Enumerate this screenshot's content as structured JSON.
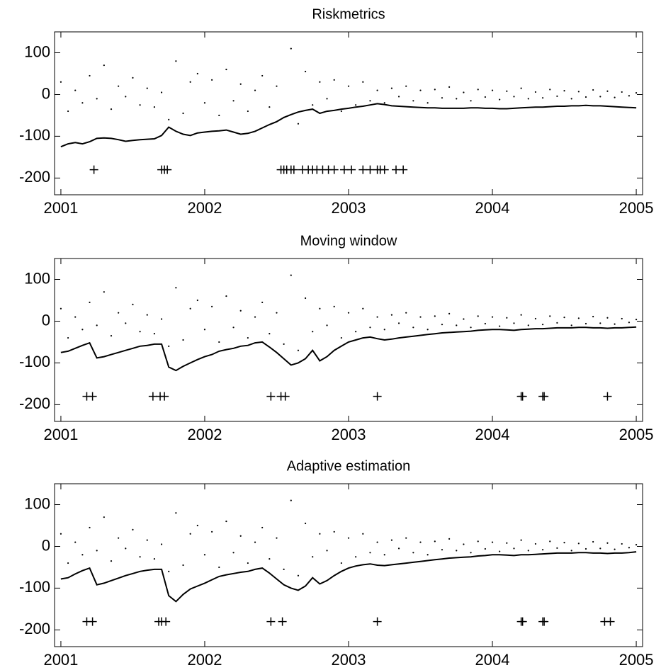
{
  "chart_data": [
    {
      "type": "line",
      "title": "Riskmetrics",
      "xlim": [
        2000.956,
        2005.044
      ],
      "ylim": [
        -240,
        150
      ],
      "xticks": [
        2001,
        2002,
        2003,
        2004,
        2005
      ],
      "yticks": [
        -200,
        -100,
        0,
        100
      ],
      "x": [
        2001.0,
        2001.05,
        2001.1,
        2001.15,
        2001.2,
        2001.25,
        2001.3,
        2001.35,
        2001.4,
        2001.45,
        2001.5,
        2001.55,
        2001.6,
        2001.65,
        2001.7,
        2001.75,
        2001.8,
        2001.85,
        2001.9,
        2001.95,
        2002.0,
        2002.05,
        2002.1,
        2002.15,
        2002.2,
        2002.25,
        2002.3,
        2002.35,
        2002.4,
        2002.45,
        2002.5,
        2002.55,
        2002.6,
        2002.65,
        2002.7,
        2002.75,
        2002.8,
        2002.85,
        2002.9,
        2002.95,
        2003.0,
        2003.05,
        2003.1,
        2003.15,
        2003.2,
        2003.25,
        2003.3,
        2003.35,
        2003.4,
        2003.45,
        2003.5,
        2003.55,
        2003.6,
        2003.65,
        2003.7,
        2003.75,
        2003.8,
        2003.85,
        2003.9,
        2003.95,
        2004.0,
        2004.05,
        2004.1,
        2004.15,
        2004.2,
        2004.25,
        2004.3,
        2004.35,
        2004.4,
        2004.45,
        2004.5,
        2004.55,
        2004.6,
        2004.65,
        2004.7,
        2004.75,
        2004.8,
        2004.85,
        2004.9,
        2004.95,
        2005.0
      ],
      "series": [
        {
          "marker": "dot",
          "color": "#000000",
          "values": [
            30,
            -40,
            10,
            -20,
            45,
            -10,
            70,
            -35,
            20,
            -5,
            40,
            -25,
            15,
            -30,
            5,
            -60,
            80,
            -45,
            30,
            50,
            -20,
            35,
            -50,
            60,
            -15,
            25,
            -40,
            10,
            45,
            -30,
            20,
            -55,
            110,
            -70,
            55,
            -25,
            30,
            -10,
            35,
            -40,
            20,
            -25,
            30,
            -15,
            10,
            -20,
            15,
            -5,
            20,
            -15,
            10,
            -20,
            12,
            -8,
            18,
            -10,
            5,
            -15,
            12,
            -6,
            10,
            -12,
            8,
            -5,
            15,
            -10,
            6,
            -8,
            12,
            -4,
            9,
            -10,
            7,
            -6,
            11,
            -5,
            8,
            -7,
            6,
            -3,
            4
          ]
        },
        {
          "marker": "line",
          "color": "#000000",
          "values": [
            -125,
            -118,
            -115,
            -118,
            -113,
            -105,
            -104,
            -105,
            -108,
            -112,
            -110,
            -108,
            -107,
            -106,
            -98,
            -78,
            -88,
            -95,
            -98,
            -92,
            -90,
            -88,
            -87,
            -85,
            -90,
            -95,
            -93,
            -88,
            -80,
            -72,
            -65,
            -55,
            -48,
            -42,
            -38,
            -35,
            -45,
            -40,
            -38,
            -35,
            -33,
            -30,
            -28,
            -25,
            -22,
            -24,
            -27,
            -28,
            -29,
            -30,
            -31,
            -32,
            -32,
            -33,
            -33,
            -33,
            -33,
            -32,
            -32,
            -33,
            -33,
            -34,
            -34,
            -33,
            -32,
            -31,
            -30,
            -30,
            -29,
            -28,
            -28,
            -27,
            -27,
            -26,
            -27,
            -27,
            -28,
            -29,
            -30,
            -31,
            -32
          ]
        },
        {
          "marker": "plus",
          "color": "#000000",
          "x": [
            2001.23,
            2001.7,
            2001.72,
            2001.74,
            2002.53,
            2002.55,
            2002.57,
            2002.6,
            2002.62,
            2002.68,
            2002.72,
            2002.75,
            2002.78,
            2002.82,
            2002.86,
            2002.9,
            2002.97,
            2003.02,
            2003.1,
            2003.15,
            2003.2,
            2003.22,
            2003.25,
            2003.33,
            2003.38
          ],
          "values": [
            -180,
            -180,
            -180,
            -180,
            -180,
            -180,
            -180,
            -180,
            -180,
            -180,
            -180,
            -180,
            -180,
            -180,
            -180,
            -180,
            -180,
            -180,
            -180,
            -180,
            -180,
            -180,
            -180,
            -180,
            -180
          ]
        }
      ]
    },
    {
      "type": "line",
      "title": "Moving window",
      "xlim": [
        2000.956,
        2005.044
      ],
      "ylim": [
        -240,
        150
      ],
      "xticks": [
        2001,
        2002,
        2003,
        2004,
        2005
      ],
      "yticks": [
        -200,
        -100,
        0,
        100
      ],
      "x": [
        2001.0,
        2001.05,
        2001.1,
        2001.15,
        2001.2,
        2001.25,
        2001.3,
        2001.35,
        2001.4,
        2001.45,
        2001.5,
        2001.55,
        2001.6,
        2001.65,
        2001.7,
        2001.75,
        2001.8,
        2001.85,
        2001.9,
        2001.95,
        2002.0,
        2002.05,
        2002.1,
        2002.15,
        2002.2,
        2002.25,
        2002.3,
        2002.35,
        2002.4,
        2002.45,
        2002.5,
        2002.55,
        2002.6,
        2002.65,
        2002.7,
        2002.75,
        2002.8,
        2002.85,
        2002.9,
        2002.95,
        2003.0,
        2003.05,
        2003.1,
        2003.15,
        2003.2,
        2003.25,
        2003.3,
        2003.35,
        2003.4,
        2003.45,
        2003.5,
        2003.55,
        2003.6,
        2003.65,
        2003.7,
        2003.75,
        2003.8,
        2003.85,
        2003.9,
        2003.95,
        2004.0,
        2004.05,
        2004.1,
        2004.15,
        2004.2,
        2004.25,
        2004.3,
        2004.35,
        2004.4,
        2004.45,
        2004.5,
        2004.55,
        2004.6,
        2004.65,
        2004.7,
        2004.75,
        2004.8,
        2004.85,
        2004.9,
        2004.95,
        2005.0
      ],
      "series": [
        {
          "marker": "dot",
          "color": "#000000",
          "values": [
            30,
            -40,
            10,
            -20,
            45,
            -10,
            70,
            -35,
            20,
            -5,
            40,
            -25,
            15,
            -30,
            5,
            -60,
            80,
            -45,
            30,
            50,
            -20,
            35,
            -50,
            60,
            -15,
            25,
            -40,
            10,
            45,
            -30,
            20,
            -55,
            110,
            -70,
            55,
            -25,
            30,
            -10,
            35,
            -40,
            20,
            -25,
            30,
            -15,
            10,
            -20,
            15,
            -5,
            20,
            -15,
            10,
            -20,
            12,
            -8,
            18,
            -10,
            5,
            -15,
            12,
            -6,
            10,
            -12,
            8,
            -5,
            15,
            -10,
            6,
            -8,
            12,
            -4,
            9,
            -10,
            7,
            -6,
            11,
            -5,
            8,
            -7,
            6,
            -3,
            4
          ]
        },
        {
          "marker": "line",
          "color": "#000000",
          "values": [
            -75,
            -72,
            -65,
            -58,
            -52,
            -88,
            -85,
            -80,
            -75,
            -70,
            -65,
            -60,
            -58,
            -55,
            -55,
            -110,
            -118,
            -108,
            -100,
            -92,
            -85,
            -80,
            -72,
            -68,
            -65,
            -60,
            -58,
            -52,
            -50,
            -62,
            -75,
            -90,
            -105,
            -100,
            -90,
            -70,
            -95,
            -85,
            -70,
            -60,
            -50,
            -45,
            -40,
            -38,
            -42,
            -45,
            -43,
            -40,
            -38,
            -36,
            -34,
            -32,
            -30,
            -28,
            -27,
            -26,
            -25,
            -24,
            -22,
            -21,
            -20,
            -20,
            -21,
            -22,
            -20,
            -19,
            -18,
            -18,
            -17,
            -16,
            -16,
            -16,
            -15,
            -15,
            -16,
            -16,
            -17,
            -16,
            -16,
            -15,
            -14
          ]
        },
        {
          "marker": "plus",
          "color": "#000000",
          "x": [
            2001.18,
            2001.22,
            2001.64,
            2001.69,
            2001.72,
            2002.46,
            2002.53,
            2002.56,
            2003.2,
            2004.2,
            2004.21,
            2004.35,
            2004.36,
            2004.8
          ],
          "values": [
            -180,
            -180,
            -180,
            -180,
            -180,
            -180,
            -180,
            -180,
            -180,
            -180,
            -180,
            -180,
            -180,
            -180
          ]
        }
      ]
    },
    {
      "type": "line",
      "title": "Adaptive estimation",
      "xlim": [
        2000.956,
        2005.044
      ],
      "ylim": [
        -240,
        150
      ],
      "xticks": [
        2001,
        2002,
        2003,
        2004,
        2005
      ],
      "yticks": [
        -200,
        -100,
        0,
        100
      ],
      "x": [
        2001.0,
        2001.05,
        2001.1,
        2001.15,
        2001.2,
        2001.25,
        2001.3,
        2001.35,
        2001.4,
        2001.45,
        2001.5,
        2001.55,
        2001.6,
        2001.65,
        2001.7,
        2001.75,
        2001.8,
        2001.85,
        2001.9,
        2001.95,
        2002.0,
        2002.05,
        2002.1,
        2002.15,
        2002.2,
        2002.25,
        2002.3,
        2002.35,
        2002.4,
        2002.45,
        2002.5,
        2002.55,
        2002.6,
        2002.65,
        2002.7,
        2002.75,
        2002.8,
        2002.85,
        2002.9,
        2002.95,
        2003.0,
        2003.05,
        2003.1,
        2003.15,
        2003.2,
        2003.25,
        2003.3,
        2003.35,
        2003.4,
        2003.45,
        2003.5,
        2003.55,
        2003.6,
        2003.65,
        2003.7,
        2003.75,
        2003.8,
        2003.85,
        2003.9,
        2003.95,
        2004.0,
        2004.05,
        2004.1,
        2004.15,
        2004.2,
        2004.25,
        2004.3,
        2004.35,
        2004.4,
        2004.45,
        2004.5,
        2004.55,
        2004.6,
        2004.65,
        2004.7,
        2004.75,
        2004.8,
        2004.85,
        2004.9,
        2004.95,
        2005.0
      ],
      "series": [
        {
          "marker": "dot",
          "color": "#000000",
          "values": [
            30,
            -40,
            10,
            -20,
            45,
            -10,
            70,
            -35,
            20,
            -5,
            40,
            -25,
            15,
            -30,
            5,
            -60,
            80,
            -45,
            30,
            50,
            -20,
            35,
            -50,
            60,
            -15,
            25,
            -40,
            10,
            45,
            -30,
            20,
            -55,
            110,
            -70,
            55,
            -25,
            30,
            -10,
            35,
            -40,
            20,
            -25,
            30,
            -15,
            10,
            -20,
            15,
            -5,
            20,
            -15,
            10,
            -20,
            12,
            -8,
            18,
            -10,
            5,
            -15,
            12,
            -6,
            10,
            -12,
            8,
            -5,
            15,
            -10,
            6,
            -8,
            12,
            -4,
            9,
            -10,
            7,
            -6,
            11,
            -5,
            8,
            -7,
            6,
            -3,
            4
          ]
        },
        {
          "marker": "line",
          "color": "#000000",
          "values": [
            -78,
            -75,
            -66,
            -58,
            -52,
            -92,
            -88,
            -82,
            -76,
            -70,
            -65,
            -60,
            -57,
            -55,
            -55,
            -118,
            -132,
            -115,
            -102,
            -95,
            -88,
            -80,
            -72,
            -68,
            -65,
            -62,
            -60,
            -55,
            -52,
            -64,
            -78,
            -92,
            -100,
            -105,
            -95,
            -75,
            -90,
            -82,
            -70,
            -60,
            -52,
            -47,
            -44,
            -42,
            -45,
            -46,
            -44,
            -42,
            -40,
            -38,
            -36,
            -34,
            -32,
            -30,
            -28,
            -27,
            -26,
            -25,
            -23,
            -22,
            -20,
            -20,
            -21,
            -22,
            -20,
            -20,
            -19,
            -18,
            -17,
            -16,
            -16,
            -16,
            -15,
            -15,
            -16,
            -16,
            -17,
            -16,
            -16,
            -15,
            -13
          ]
        },
        {
          "marker": "plus",
          "color": "#000000",
          "x": [
            2001.18,
            2001.22,
            2001.68,
            2001.7,
            2001.73,
            2002.46,
            2002.54,
            2003.2,
            2004.2,
            2004.21,
            2004.35,
            2004.36,
            2004.78,
            2004.82
          ],
          "values": [
            -180,
            -180,
            -180,
            -180,
            -180,
            -180,
            -180,
            -180,
            -180,
            -180,
            -180,
            -180,
            -180,
            -180
          ]
        }
      ]
    }
  ]
}
